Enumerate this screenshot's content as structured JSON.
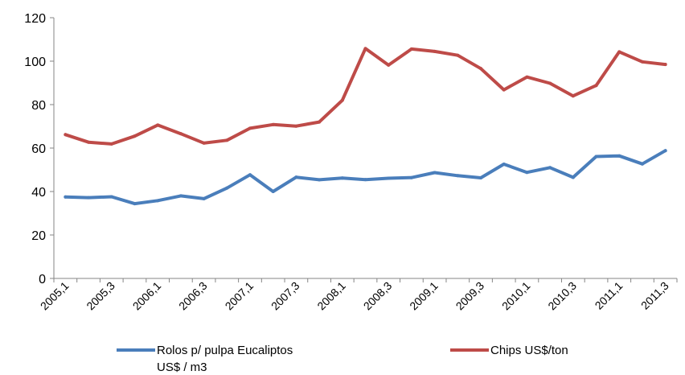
{
  "chart_data": {
    "type": "line",
    "title": "",
    "xlabel": "",
    "ylabel": "",
    "ylim": [
      0,
      120
    ],
    "y_ticks": [
      "0",
      "20",
      "40",
      "60",
      "80",
      "100",
      "120"
    ],
    "categories": [
      "2005,1",
      "2005,2",
      "2005,3",
      "2005,4",
      "2006,1",
      "2006,2",
      "2006,3",
      "2006,4",
      "2007,1",
      "2007,2",
      "2007,3",
      "2007,4",
      "2008,1",
      "2008,2",
      "2008,3",
      "2008,4",
      "2009,1",
      "2009,2",
      "2009,3",
      "2009,4",
      "2010,1",
      "2010,2",
      "2010,3",
      "2010,4",
      "2011,1",
      "2011,2",
      "2011,3"
    ],
    "x_tick_labels": [
      "2005,1",
      "2005,3",
      "2006,1",
      "2006,3",
      "2007,1",
      "2007,3",
      "2008,1",
      "2008,3",
      "2009,1",
      "2009,3",
      "2010,1",
      "2010,3",
      "2011,1",
      "2011,3"
    ],
    "grid": false,
    "legend_position": "bottom",
    "series": [
      {
        "name": "Rolos p/ pulpa Eucaliptos US$ / m3",
        "legend_lines": [
          "Rolos p/ pulpa Eucaliptos",
          "US$ / m3"
        ],
        "color": "#4a7ebb",
        "values": [
          37.5,
          37.2,
          37.6,
          34.4,
          35.8,
          38.0,
          36.7,
          41.6,
          47.7,
          40.0,
          46.6,
          45.4,
          46.2,
          45.5,
          46.1,
          46.4,
          48.7,
          47.3,
          46.3,
          52.6,
          48.8,
          51.0,
          46.5,
          56.1,
          56.4,
          52.7,
          58.8
        ]
      },
      {
        "name": "Chips US$/ton",
        "legend_lines": [
          "Chips US$/ton"
        ],
        "color": "#be4b48",
        "values": [
          66.2,
          62.7,
          61.9,
          65.5,
          70.6,
          66.6,
          62.3,
          63.6,
          69.1,
          70.8,
          70.1,
          72.0,
          82.0,
          105.8,
          98.2,
          105.6,
          104.5,
          102.7,
          96.6,
          86.8,
          92.7,
          89.8,
          84.0,
          88.8,
          104.3,
          99.7,
          98.5
        ]
      }
    ]
  }
}
